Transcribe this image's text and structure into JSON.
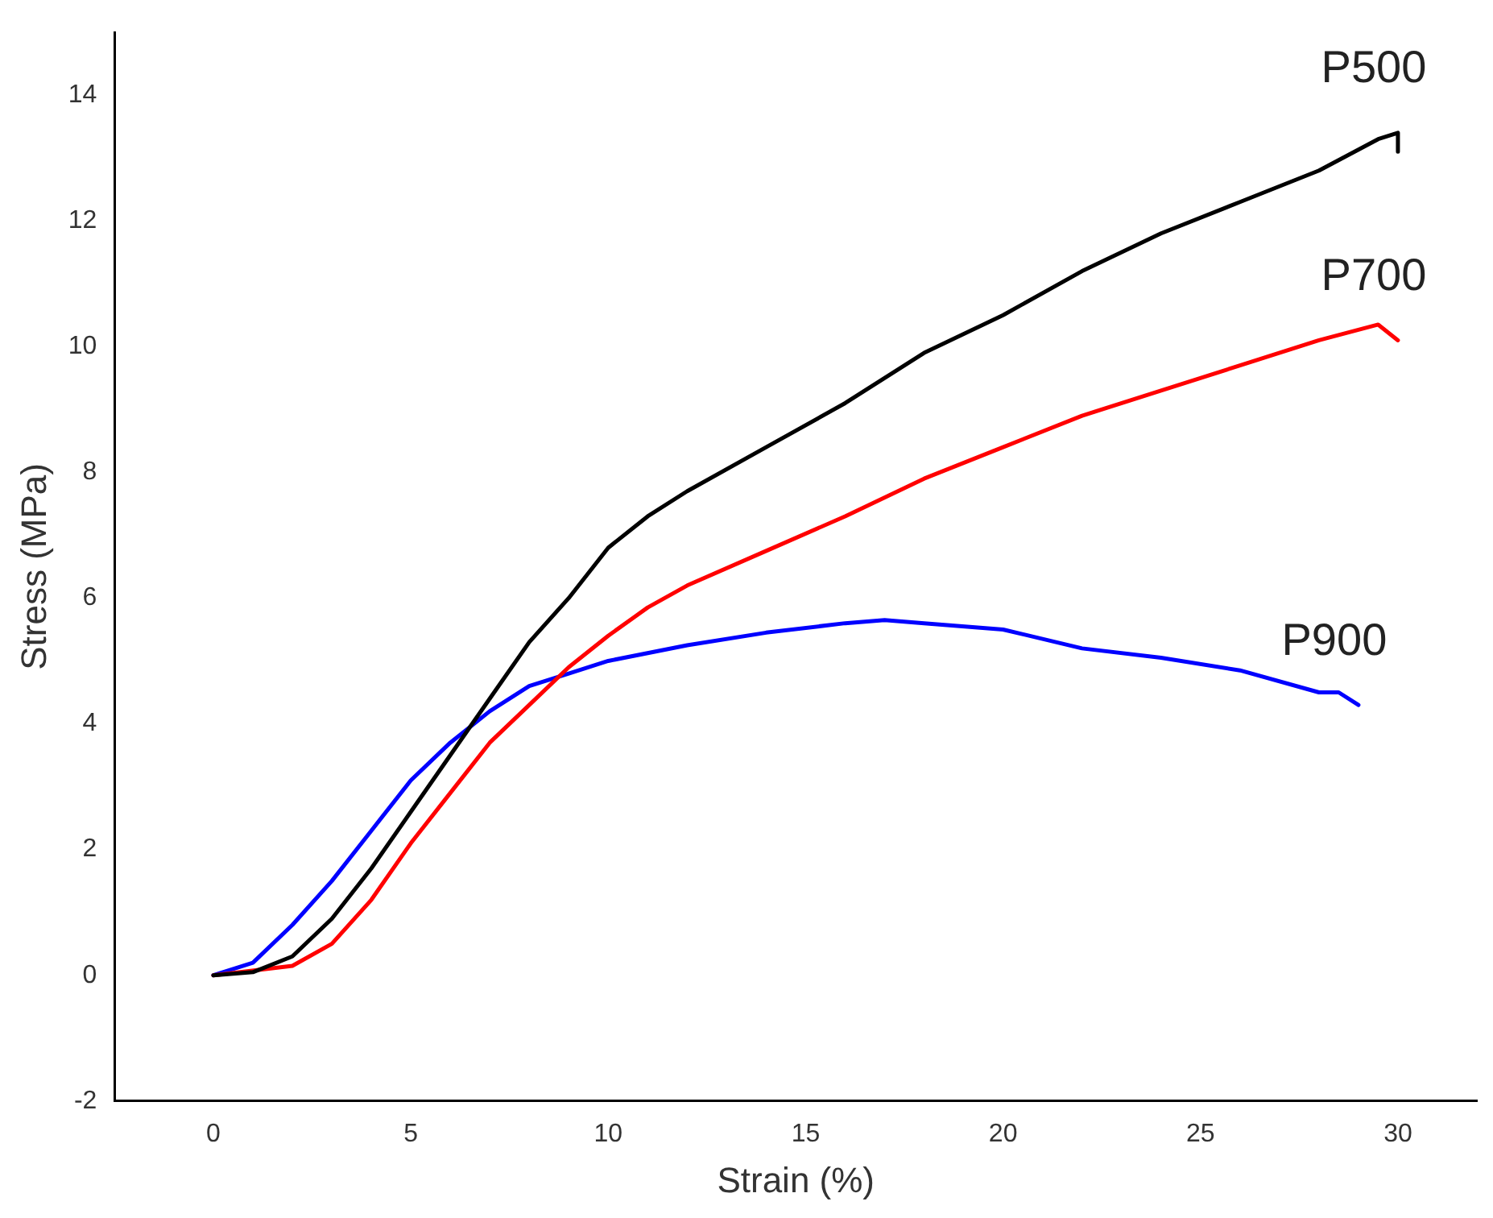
{
  "chart_data": {
    "type": "line",
    "xlabel": "Strain (%)",
    "ylabel": "Stress (MPa)",
    "xlim": [
      -2.5,
      32
    ],
    "ylim": [
      -2,
      15
    ],
    "xticks": [
      0,
      5,
      10,
      15,
      20,
      25,
      30
    ],
    "yticks": [
      -2,
      0,
      2,
      4,
      6,
      8,
      10,
      12,
      14
    ],
    "grid": false,
    "legend": false,
    "marker": "none",
    "line_style": "solid",
    "series": [
      {
        "name": "P500",
        "color": "#000000",
        "x": [
          0,
          1,
          2,
          3,
          4,
          5,
          6,
          7,
          8,
          9,
          10,
          11,
          12,
          14,
          16,
          18,
          20,
          22,
          24,
          26,
          28,
          29.5,
          30,
          30
        ],
        "values": [
          0,
          0.05,
          0.3,
          0.9,
          1.7,
          2.6,
          3.5,
          4.4,
          5.3,
          6.0,
          6.8,
          7.3,
          7.7,
          8.4,
          9.1,
          9.9,
          10.5,
          11.2,
          11.8,
          12.3,
          12.8,
          13.3,
          13.4,
          13.1
        ]
      },
      {
        "name": "P700",
        "color": "#ff0000",
        "x": [
          0,
          2,
          3,
          4,
          5,
          6,
          7,
          8,
          9,
          10,
          11,
          12,
          14,
          16,
          18,
          20,
          22,
          24,
          26,
          28,
          29.5,
          30
        ],
        "values": [
          0,
          0.15,
          0.5,
          1.2,
          2.1,
          2.9,
          3.7,
          4.3,
          4.9,
          5.4,
          5.85,
          6.2,
          6.75,
          7.3,
          7.9,
          8.4,
          8.9,
          9.3,
          9.7,
          10.1,
          10.35,
          10.1
        ]
      },
      {
        "name": "P900",
        "color": "#0000ff",
        "x": [
          0,
          1,
          2,
          3,
          4,
          5,
          6,
          7,
          8,
          9,
          10,
          12,
          14,
          16,
          17,
          18,
          20,
          22,
          24,
          26,
          28,
          28.5,
          29
        ],
        "values": [
          0,
          0.2,
          0.8,
          1.5,
          2.3,
          3.1,
          3.7,
          4.2,
          4.6,
          4.8,
          5.0,
          5.25,
          5.45,
          5.6,
          5.65,
          5.6,
          5.5,
          5.2,
          5.05,
          4.85,
          4.5,
          4.5,
          4.3
        ]
      }
    ]
  }
}
